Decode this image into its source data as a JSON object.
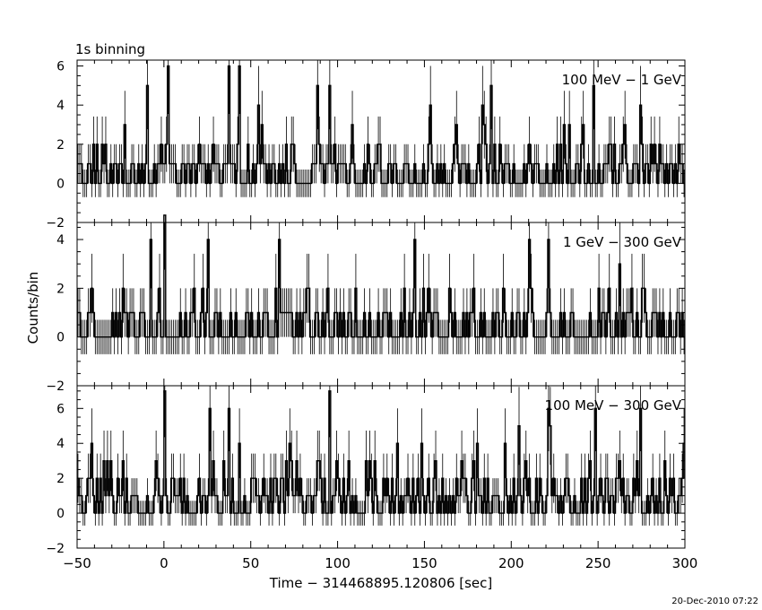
{
  "chart_data": {
    "type": "line",
    "title": "1s binning",
    "xlabel": "Time − 314468895.120806 [sec]",
    "ylabel": "Counts/bin",
    "footer": "20-Dec-2010 07:22",
    "xlim": [
      -50,
      300
    ],
    "x_ticks": [
      -50,
      0,
      50,
      100,
      150,
      200,
      250,
      300
    ],
    "x_tick_labels": [
      "−50",
      "0",
      "50",
      "100",
      "150",
      "200",
      "250",
      "300"
    ],
    "bin_width": 1,
    "panels": [
      {
        "label": "100 MeV − 1 GeV",
        "ylim": [
          -2,
          6.3
        ],
        "y_ticks": [
          -2,
          0,
          2,
          4,
          6
        ],
        "y_tick_labels": [
          "−2",
          "0",
          "2",
          "4",
          "6"
        ],
        "peaks": [
          {
            "x": -10,
            "value": 5
          },
          {
            "x": 2,
            "value": 6
          },
          {
            "x": 37,
            "value": 6
          },
          {
            "x": 88,
            "value": 5
          },
          {
            "x": 95,
            "value": 5
          },
          {
            "x": 183,
            "value": 4
          },
          {
            "x": 247,
            "value": 5
          },
          {
            "x": 274,
            "value": 4
          }
        ]
      },
      {
        "label": "1 GeV − 300 GeV",
        "ylim": [
          -2,
          4.7
        ],
        "y_ticks": [
          -2,
          0,
          2,
          4
        ],
        "y_tick_labels": [
          "−2",
          "0",
          "2",
          "4"
        ],
        "peaks": [
          {
            "x": -8,
            "value": 4
          },
          {
            "x": 0,
            "value": 5
          },
          {
            "x": 25,
            "value": 4
          },
          {
            "x": 66,
            "value": 4
          },
          {
            "x": 144,
            "value": 4
          },
          {
            "x": 210,
            "value": 4
          },
          {
            "x": 221,
            "value": 4
          },
          {
            "x": 262,
            "value": 3
          }
        ]
      },
      {
        "label": "100 MeV − 300 GeV",
        "ylim": [
          -2,
          7.3
        ],
        "y_ticks": [
          -2,
          0,
          2,
          4,
          6
        ],
        "y_tick_labels": [
          "−2",
          "0",
          "2",
          "4",
          "6"
        ],
        "peaks": [
          {
            "x": 0,
            "value": 7
          },
          {
            "x": 26,
            "value": 6
          },
          {
            "x": 37,
            "value": 6
          },
          {
            "x": 95,
            "value": 7
          },
          {
            "x": 221,
            "value": 6
          },
          {
            "x": 248,
            "value": 6
          },
          {
            "x": 274,
            "value": 6
          }
        ]
      }
    ]
  }
}
